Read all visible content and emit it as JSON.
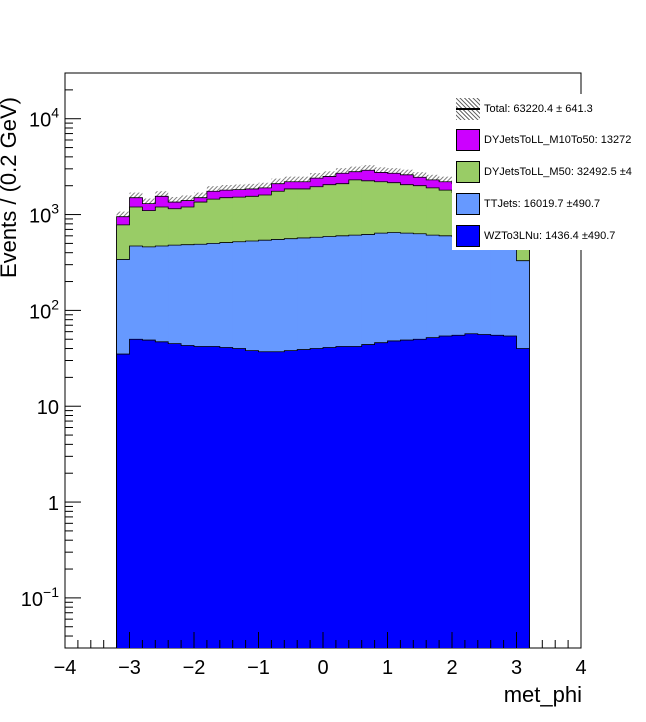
{
  "chart_data": {
    "type": "area",
    "stacked": true,
    "xlabel": "met_phi",
    "ylabel": "Events / (0.2 GeV)",
    "xlim": [
      -4,
      4
    ],
    "ylim": [
      0.03,
      30000
    ],
    "yscale": "log",
    "grid": false,
    "legend_position": "top-right",
    "xticks": [
      "−4",
      "−3",
      "−2",
      "−1",
      "0",
      "1",
      "2",
      "3",
      "4"
    ],
    "yticks": [
      {
        "value": 0.1,
        "base": "10",
        "exp": "−1"
      },
      {
        "value": 1,
        "label": "1"
      },
      {
        "value": 10,
        "label": "10"
      },
      {
        "value": 100,
        "base": "10",
        "exp": "2"
      },
      {
        "value": 1000,
        "base": "10",
        "exp": "3"
      },
      {
        "value": 10000,
        "base": "10",
        "exp": "4"
      }
    ],
    "bin_edges": [
      -3.2,
      -3.0,
      -2.8,
      -2.6,
      -2.4,
      -2.2,
      -2.0,
      -1.8,
      -1.6,
      -1.4,
      -1.2,
      -1.0,
      -0.8,
      -0.6,
      -0.4,
      -0.2,
      0.0,
      0.2,
      0.4,
      0.6,
      0.8,
      1.0,
      1.2,
      1.4,
      1.6,
      1.8,
      2.0,
      2.2,
      2.4,
      2.6,
      2.8,
      3.0,
      3.2
    ],
    "series": [
      {
        "name": "WZTo3LNu",
        "color": "#0000ff",
        "cumulative_values": [
          35,
          50,
          49,
          47,
          45,
          43,
          42,
          42,
          41,
          40,
          38,
          37,
          37,
          38,
          39,
          40,
          41,
          42,
          42,
          44,
          46,
          48,
          49,
          50,
          52,
          54,
          55,
          57,
          56,
          55,
          54,
          40
        ]
      },
      {
        "name": "TTJets",
        "color": "#6699ff",
        "cumulative_values": [
          340,
          470,
          460,
          470,
          480,
          485,
          490,
          500,
          510,
          520,
          530,
          540,
          550,
          560,
          570,
          580,
          590,
          600,
          610,
          620,
          640,
          650,
          640,
          630,
          610,
          600,
          590,
          580,
          570,
          565,
          560,
          330
        ]
      },
      {
        "name": "DYJetsToLL_M50",
        "color": "#99cc66",
        "cumulative_values": [
          780,
          1200,
          1100,
          1200,
          1150,
          1200,
          1350,
          1450,
          1500,
          1520,
          1550,
          1600,
          1750,
          1850,
          1850,
          1950,
          2050,
          2100,
          2300,
          2250,
          2200,
          2150,
          2050,
          2000,
          1900,
          1800,
          1700,
          1600,
          1550,
          1450,
          1250,
          700
        ]
      },
      {
        "name": "DYJetsToLL_M10To50",
        "color": "#cc00ff",
        "cumulative_values": [
          950,
          1500,
          1300,
          1550,
          1350,
          1400,
          1500,
          1750,
          1800,
          1820,
          1850,
          1900,
          2100,
          2200,
          2200,
          2400,
          2500,
          2700,
          2800,
          2900,
          2750,
          2700,
          2600,
          2450,
          2300,
          2200,
          2100,
          2000,
          1900,
          1800,
          1650,
          1000
        ]
      }
    ],
    "total_band": {
      "name": "Total",
      "color": "#808080",
      "values": [
        950,
        1500,
        1300,
        1550,
        1350,
        1400,
        1500,
        1750,
        1800,
        1820,
        1850,
        1900,
        2100,
        2200,
        2200,
        2400,
        2500,
        2700,
        2800,
        2900,
        2750,
        2700,
        2600,
        2450,
        2300,
        2200,
        2100,
        2000,
        1900,
        1800,
        1650,
        1000
      ]
    },
    "legend": [
      {
        "label": "Total: 63220.4 ± 641.3",
        "kind": "total"
      },
      {
        "label": "DYJetsToLL_M10To50: 13272",
        "color": "#cc00ff"
      },
      {
        "label": "DYJetsToLL_M50: 32492.5 ±4",
        "color": "#99cc66"
      },
      {
        "label": "TTJets: 16019.7 ±490.7",
        "color": "#6699ff"
      },
      {
        "label": "WZTo3LNu: 1436.4 ±490.7",
        "color": "#0000ff"
      }
    ]
  }
}
